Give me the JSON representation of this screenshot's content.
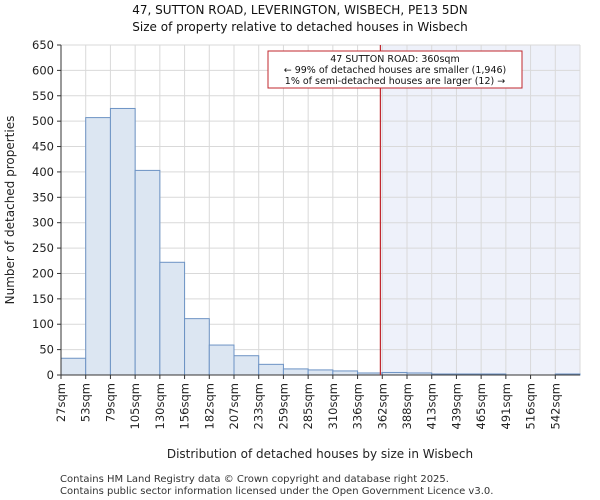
{
  "chart_data": {
    "type": "bar",
    "title": "47, SUTTON ROAD, LEVERINGTON, WISBECH, PE13 5DN",
    "subtitle": "Size of property relative to detached houses in Wisbech",
    "xlabel": "Distribution of detached houses by size in Wisbech",
    "ylabel": "Number of detached properties",
    "ylim": [
      0,
      650
    ],
    "yticks": [
      0,
      50,
      100,
      150,
      200,
      250,
      300,
      350,
      400,
      450,
      500,
      550,
      600,
      650
    ],
    "categories": [
      "27sqm",
      "53sqm",
      "79sqm",
      "105sqm",
      "130sqm",
      "156sqm",
      "182sqm",
      "207sqm",
      "233sqm",
      "259sqm",
      "285sqm",
      "310sqm",
      "336sqm",
      "362sqm",
      "388sqm",
      "413sqm",
      "439sqm",
      "465sqm",
      "491sqm",
      "516sqm",
      "542sqm"
    ],
    "values": [
      33,
      507,
      525,
      403,
      222,
      111,
      59,
      38,
      21,
      12,
      10,
      8,
      4,
      5,
      4,
      2,
      2,
      2,
      0,
      0,
      2
    ],
    "bar_color": "#dce6f2",
    "bar_edge_color": "#6d93c4",
    "highlight_bg_color": "#eef1fa",
    "marker": {
      "value_sqm": 360,
      "color": "#c0272d"
    },
    "annotation": {
      "lines": [
        "47 SUTTON ROAD: 360sqm",
        "← 99% of detached houses are smaller (1,946)",
        "1% of semi-detached houses are larger (12) →"
      ],
      "border_color": "#c0272d"
    },
    "grid": true
  },
  "footer": {
    "line1": "Contains HM Land Registry data © Crown copyright and database right 2025.",
    "line2": "Contains public sector information licensed under the Open Government Licence v3.0."
  }
}
